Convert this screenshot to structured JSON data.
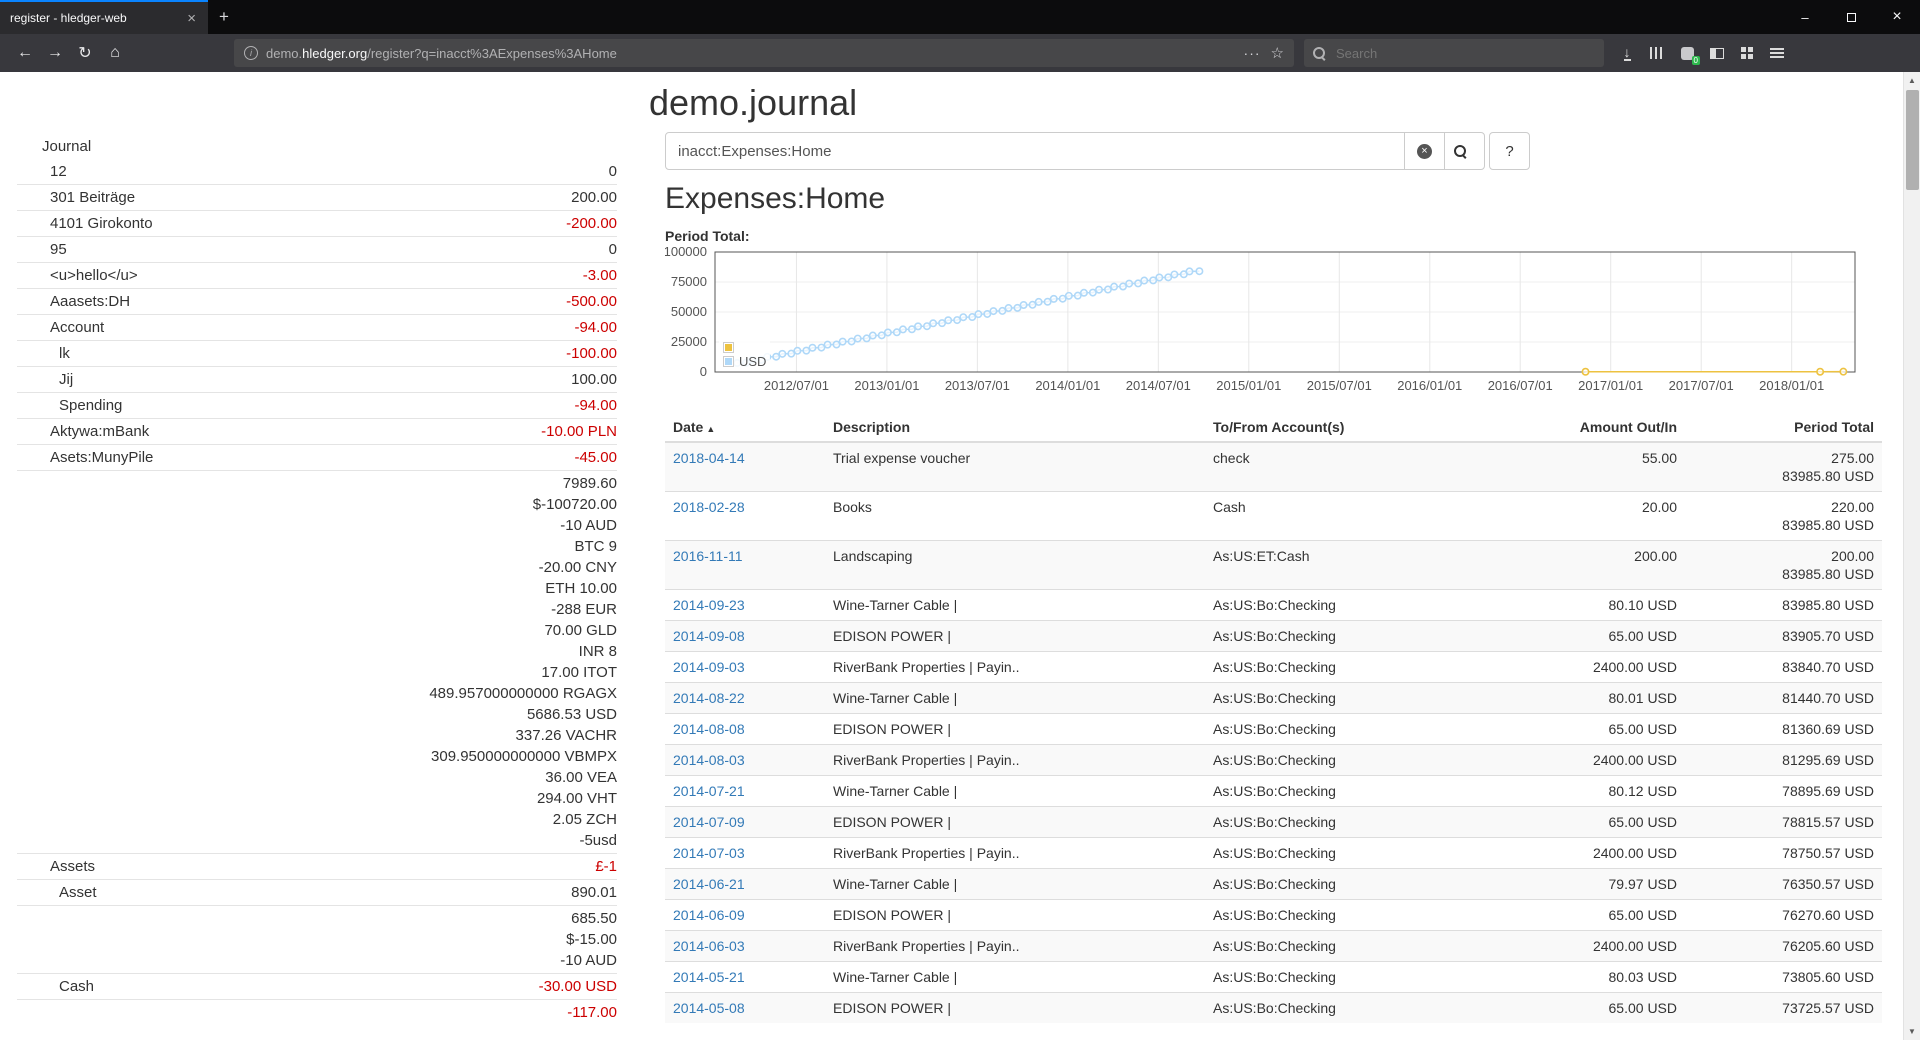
{
  "browser": {
    "tab_title": "register - hledger-web",
    "new_tab_label": "+",
    "url_sub": "demo.",
    "url_domain": "hledger.org",
    "url_path": "/register?q=inacct%3AExpenses%3AHome",
    "search_placeholder": "Search",
    "ext_badge": "0"
  },
  "page": {
    "title": "demo.journal",
    "query_value": "inacct:Expenses:Home",
    "heading": "Expenses:Home",
    "period_total_label": "Period Total:",
    "help_label": "?"
  },
  "sidebar": {
    "heading": "Journal",
    "rows": [
      {
        "name": "12",
        "level": 1,
        "values": [
          {
            "text": "0",
            "negative": false
          }
        ]
      },
      {
        "name": "301 Beiträge",
        "level": 1,
        "values": [
          {
            "text": "200.00",
            "negative": false
          }
        ]
      },
      {
        "name": "4101 Girokonto",
        "level": 1,
        "values": [
          {
            "text": "-200.00",
            "negative": true
          }
        ]
      },
      {
        "name": "95",
        "level": 1,
        "values": [
          {
            "text": "0",
            "negative": false
          }
        ]
      },
      {
        "name": "<u>hello</u>",
        "level": 1,
        "values": [
          {
            "text": "-3.00",
            "negative": true
          }
        ]
      },
      {
        "name": "Aaasets:DH",
        "level": 1,
        "values": [
          {
            "text": "-500.00",
            "negative": true
          }
        ]
      },
      {
        "name": "Account",
        "level": 1,
        "values": [
          {
            "text": "-94.00",
            "negative": true
          }
        ]
      },
      {
        "name": "lk",
        "level": 2,
        "values": [
          {
            "text": "-100.00",
            "negative": true
          }
        ]
      },
      {
        "name": "Jij",
        "level": 2,
        "values": [
          {
            "text": "100.00",
            "negative": false
          }
        ]
      },
      {
        "name": "Spending",
        "level": 2,
        "values": [
          {
            "text": "-94.00",
            "negative": true
          }
        ]
      },
      {
        "name": "Aktywa:mBank",
        "level": 1,
        "values": [
          {
            "text": "-10.00 PLN",
            "negative": true
          }
        ]
      },
      {
        "name": "Asets:MunyPile",
        "level": 1,
        "values": [
          {
            "text": "-45.00",
            "negative": true
          }
        ]
      },
      {
        "name": "",
        "level": 1,
        "values": [
          {
            "text": "7989.60",
            "negative": false
          },
          {
            "text": "$-100720.00",
            "negative": false
          },
          {
            "text": "-10 AUD",
            "negative": false
          },
          {
            "text": "BTC 9",
            "negative": false
          },
          {
            "text": "-20.00 CNY",
            "negative": false
          },
          {
            "text": "ETH 10.00",
            "negative": false
          },
          {
            "text": "-288 EUR",
            "negative": false
          },
          {
            "text": "70.00 GLD",
            "negative": false
          },
          {
            "text": "INR 8",
            "negative": false
          },
          {
            "text": "17.00 ITOT",
            "negative": false
          },
          {
            "text": "489.957000000000 RGAGX",
            "negative": false
          },
          {
            "text": "5686.53 USD",
            "negative": false
          },
          {
            "text": "337.26 VACHR",
            "negative": false
          },
          {
            "text": "309.950000000000 VBMPX",
            "negative": false
          },
          {
            "text": "36.00 VEA",
            "negative": false
          },
          {
            "text": "294.00 VHT",
            "negative": false
          },
          {
            "text": "2.05 ZCH",
            "negative": false
          },
          {
            "text": "-5usd",
            "negative": false
          }
        ]
      },
      {
        "name": "Assets",
        "level": 1,
        "values": [
          {
            "text": "£-1",
            "negative": true
          }
        ]
      },
      {
        "name": "Asset",
        "level": 2,
        "values": [
          {
            "text": "890.01",
            "negative": false
          }
        ]
      },
      {
        "name": "",
        "level": 2,
        "values": [
          {
            "text": "685.50",
            "negative": false
          },
          {
            "text": "$-15.00",
            "negative": false
          },
          {
            "text": "-10 AUD",
            "negative": false
          }
        ]
      },
      {
        "name": "Cash",
        "level": 2,
        "values": [
          {
            "text": "-30.00 USD",
            "negative": true
          }
        ]
      },
      {
        "name": "",
        "level": 2,
        "values": [
          {
            "text": "-117.00",
            "negative": true
          }
        ]
      }
    ]
  },
  "chart_data": {
    "type": "line",
    "title": "Period Total",
    "x_axis": {
      "min": 2012.05,
      "max": 2018.35,
      "ticks": [
        {
          "label": "2012/07/01",
          "x": 2012.5
        },
        {
          "label": "2013/01/01",
          "x": 2013.0
        },
        {
          "label": "2013/07/01",
          "x": 2013.5
        },
        {
          "label": "2014/01/01",
          "x": 2014.0
        },
        {
          "label": "2014/07/01",
          "x": 2014.5
        },
        {
          "label": "2015/01/01",
          "x": 2015.0
        },
        {
          "label": "2015/07/01",
          "x": 2015.5
        },
        {
          "label": "2016/01/01",
          "x": 2016.0
        },
        {
          "label": "2016/07/01",
          "x": 2016.5
        },
        {
          "label": "2017/01/01",
          "x": 2017.0
        },
        {
          "label": "2017/07/01",
          "x": 2017.5
        },
        {
          "label": "2018/01/01",
          "x": 2018.0
        }
      ]
    },
    "y_axis": {
      "min": 0,
      "max": 100000,
      "ticks": [
        0,
        25000,
        50000,
        75000,
        100000
      ]
    },
    "legend_position": "inside bottom-left",
    "grid": true,
    "series": [
      {
        "name": "",
        "color": "#edc240",
        "points": [
          [
            "2016-11-11",
            200
          ],
          [
            "2018-02-28",
            220
          ],
          [
            "2018-04-14",
            275
          ]
        ]
      },
      {
        "name": "USD",
        "color": "#afd8f8",
        "points": [
          [
            "2012-03-03",
            7490.8
          ],
          [
            "2012-03-21",
            7635.8
          ],
          [
            "2012-04-03",
            10035.8
          ],
          [
            "2012-04-21",
            10180.8
          ],
          [
            "2012-05-03",
            12580.8
          ],
          [
            "2012-05-21",
            12725.8
          ],
          [
            "2012-06-03",
            15125.8
          ],
          [
            "2012-06-21",
            15270.8
          ],
          [
            "2012-07-03",
            17670.8
          ],
          [
            "2012-07-21",
            17815.8
          ],
          [
            "2012-08-03",
            20215.8
          ],
          [
            "2012-08-21",
            20360.8
          ],
          [
            "2012-09-03",
            22760.8
          ],
          [
            "2012-09-21",
            22905.8
          ],
          [
            "2012-10-03",
            25305.8
          ],
          [
            "2012-10-21",
            25450.8
          ],
          [
            "2012-11-03",
            27850.8
          ],
          [
            "2012-11-21",
            27995.8
          ],
          [
            "2012-12-03",
            30395.8
          ],
          [
            "2012-12-21",
            30540.8
          ],
          [
            "2013-01-03",
            32940.8
          ],
          [
            "2013-01-21",
            33085.8
          ],
          [
            "2013-02-03",
            35485.8
          ],
          [
            "2013-02-21",
            35630.8
          ],
          [
            "2013-03-03",
            38030.8
          ],
          [
            "2013-03-21",
            38175.8
          ],
          [
            "2013-04-03",
            40575.8
          ],
          [
            "2013-04-21",
            40720.8
          ],
          [
            "2013-05-03",
            43120.8
          ],
          [
            "2013-05-21",
            43265.8
          ],
          [
            "2013-06-03",
            45665.8
          ],
          [
            "2013-06-21",
            45810.8
          ],
          [
            "2013-07-03",
            48210.8
          ],
          [
            "2013-07-21",
            48355.8
          ],
          [
            "2013-08-03",
            50755.8
          ],
          [
            "2013-08-21",
            50900.8
          ],
          [
            "2013-09-03",
            53300.8
          ],
          [
            "2013-09-21",
            53445.8
          ],
          [
            "2013-10-03",
            55845.8
          ],
          [
            "2013-10-21",
            55990.8
          ],
          [
            "2013-11-03",
            58390.8
          ],
          [
            "2013-11-21",
            58535.8
          ],
          [
            "2013-12-03",
            60935.8
          ],
          [
            "2013-12-21",
            61080.8
          ],
          [
            "2014-01-03",
            63480.8
          ],
          [
            "2014-01-21",
            63625.8
          ],
          [
            "2014-02-03",
            66025.8
          ],
          [
            "2014-02-21",
            66170.8
          ],
          [
            "2014-03-03",
            68570.8
          ],
          [
            "2014-03-21",
            68715.8
          ],
          [
            "2014-04-03",
            71115.8
          ],
          [
            "2014-04-21",
            71260.8
          ],
          [
            "2014-05-03",
            73660.57
          ],
          [
            "2014-05-21",
            73805.6
          ],
          [
            "2014-06-03",
            76205.6
          ],
          [
            "2014-06-21",
            76350.57
          ],
          [
            "2014-07-03",
            78750.57
          ],
          [
            "2014-07-21",
            78895.69
          ],
          [
            "2014-08-03",
            81295.69
          ],
          [
            "2014-08-22",
            81440.7
          ],
          [
            "2014-09-03",
            83840.7
          ],
          [
            "2014-09-23",
            83985.8
          ]
        ]
      }
    ]
  },
  "register": {
    "sort_icon": "▲",
    "columns": [
      "Date",
      "Description",
      "To/From Account(s)",
      "Amount Out/In",
      "Period Total"
    ],
    "rows": [
      {
        "date": "2018-04-14",
        "description": "Trial expense voucher",
        "account": "check",
        "amount": "55.00",
        "total": "275.00",
        "total2": "83985.80 USD"
      },
      {
        "date": "2018-02-28",
        "description": "Books",
        "account": "Cash",
        "amount": "20.00",
        "total": "220.00",
        "total2": "83985.80 USD"
      },
      {
        "date": "2016-11-11",
        "description": "Landscaping",
        "account": "As:US:ET:Cash",
        "amount": "200.00",
        "total": "200.00",
        "total2": "83985.80 USD"
      },
      {
        "date": "2014-09-23",
        "description": "Wine-Tarner Cable |",
        "account": "As:US:Bo:Checking",
        "amount": "80.10 USD",
        "total": "83985.80 USD"
      },
      {
        "date": "2014-09-08",
        "description": "EDISON POWER |",
        "account": "As:US:Bo:Checking",
        "amount": "65.00 USD",
        "total": "83905.70 USD"
      },
      {
        "date": "2014-09-03",
        "description": "RiverBank Properties | Payin..",
        "account": "As:US:Bo:Checking",
        "amount": "2400.00 USD",
        "total": "83840.70 USD"
      },
      {
        "date": "2014-08-22",
        "description": "Wine-Tarner Cable |",
        "account": "As:US:Bo:Checking",
        "amount": "80.01 USD",
        "total": "81440.70 USD"
      },
      {
        "date": "2014-08-08",
        "description": "EDISON POWER |",
        "account": "As:US:Bo:Checking",
        "amount": "65.00 USD",
        "total": "81360.69 USD"
      },
      {
        "date": "2014-08-03",
        "description": "RiverBank Properties | Payin..",
        "account": "As:US:Bo:Checking",
        "amount": "2400.00 USD",
        "total": "81295.69 USD"
      },
      {
        "date": "2014-07-21",
        "description": "Wine-Tarner Cable |",
        "account": "As:US:Bo:Checking",
        "amount": "80.12 USD",
        "total": "78895.69 USD"
      },
      {
        "date": "2014-07-09",
        "description": "EDISON POWER |",
        "account": "As:US:Bo:Checking",
        "amount": "65.00 USD",
        "total": "78815.57 USD"
      },
      {
        "date": "2014-07-03",
        "description": "RiverBank Properties | Payin..",
        "account": "As:US:Bo:Checking",
        "amount": "2400.00 USD",
        "total": "78750.57 USD"
      },
      {
        "date": "2014-06-21",
        "description": "Wine-Tarner Cable |",
        "account": "As:US:Bo:Checking",
        "amount": "79.97 USD",
        "total": "76350.57 USD"
      },
      {
        "date": "2014-06-09",
        "description": "EDISON POWER |",
        "account": "As:US:Bo:Checking",
        "amount": "65.00 USD",
        "total": "76270.60 USD"
      },
      {
        "date": "2014-06-03",
        "description": "RiverBank Properties | Payin..",
        "account": "As:US:Bo:Checking",
        "amount": "2400.00 USD",
        "total": "76205.60 USD"
      },
      {
        "date": "2014-05-21",
        "description": "Wine-Tarner Cable |",
        "account": "As:US:Bo:Checking",
        "amount": "80.03 USD",
        "total": "73805.60 USD"
      },
      {
        "date": "2014-05-08",
        "description": "EDISON POWER |",
        "account": "As:US:Bo:Checking",
        "amount": "65.00 USD",
        "total": "73725.57 USD"
      }
    ]
  }
}
